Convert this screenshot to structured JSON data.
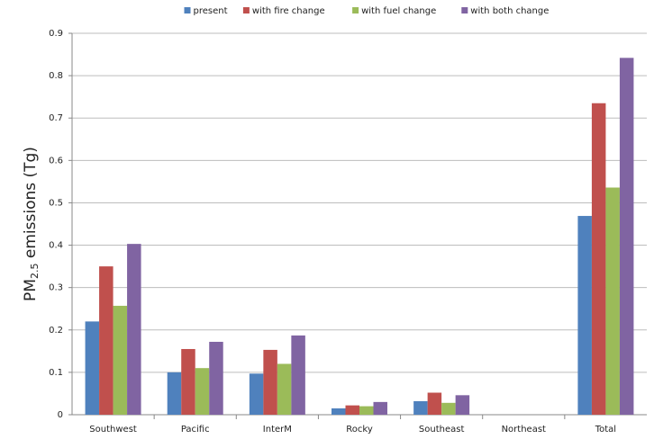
{
  "chart_data": {
    "type": "bar",
    "y_label": [
      "PM",
      "2.5",
      " emissions (Tg)"
    ],
    "categories": [
      "Southwest",
      "Pacific",
      "InterM",
      "Rocky",
      "Southeast",
      "Northeast",
      "Total"
    ],
    "series": [
      {
        "name": "present",
        "color": "#4f81bd",
        "values": [
          0.22,
          0.1,
          0.097,
          0.015,
          0.032,
          0,
          0.469
        ]
      },
      {
        "name": "with fire change",
        "color": "#c0504d",
        "values": [
          0.35,
          0.155,
          0.153,
          0.022,
          0.052,
          0,
          0.735
        ]
      },
      {
        "name": "with fuel change",
        "color": "#9bbb59",
        "values": [
          0.257,
          0.11,
          0.12,
          0.02,
          0.028,
          0,
          0.536
        ]
      },
      {
        "name": "with both change",
        "color": "#8064a2",
        "values": [
          0.403,
          0.172,
          0.187,
          0.03,
          0.046,
          0,
          0.842
        ]
      }
    ],
    "ylim": [
      0,
      0.9
    ],
    "yticks": [
      0,
      0.1,
      0.2,
      0.3,
      0.4,
      0.5,
      0.6,
      0.7,
      0.8,
      0.9
    ],
    "grid": true,
    "legend": "top"
  }
}
